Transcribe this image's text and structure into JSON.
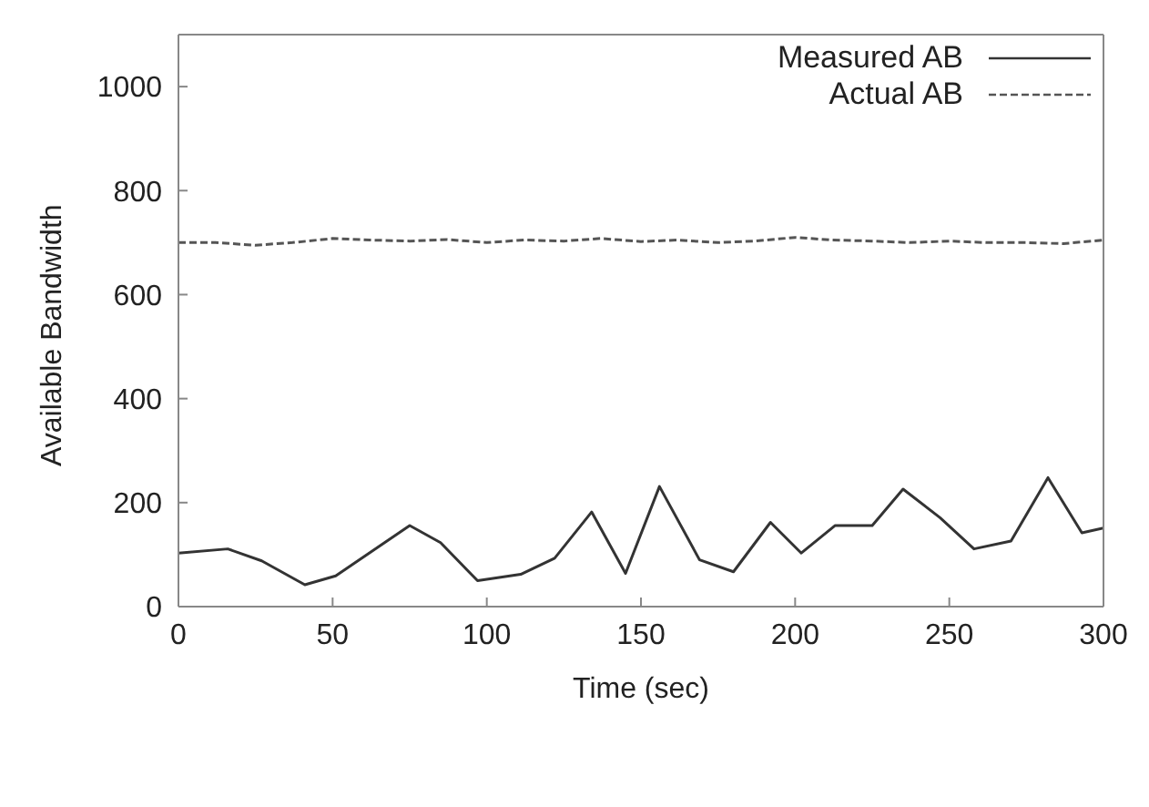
{
  "chart_data": {
    "type": "line",
    "xlabel": "Time (sec)",
    "ylabel": "Available Bandwidth",
    "xlim": [
      0,
      300
    ],
    "xticks": [
      0,
      50,
      100,
      150,
      200,
      250,
      300
    ],
    "ylim": [
      0,
      1100
    ],
    "yticks": [
      0,
      200,
      400,
      600,
      800,
      1000
    ],
    "legend": "top right",
    "marker": "none",
    "series": [
      {
        "name": "Measured AB",
        "color": "#333333",
        "line_style": "solid",
        "x": [
          0,
          16,
          27,
          41,
          51,
          75,
          85,
          97,
          111,
          122,
          134,
          145,
          156,
          169,
          180,
          192,
          202,
          213,
          225,
          235,
          247,
          258,
          270,
          282,
          293,
          300
        ],
        "values": [
          103,
          111,
          88,
          42,
          59,
          156,
          123,
          50,
          62,
          93,
          182,
          64,
          231,
          90,
          67,
          162,
          103,
          156,
          156,
          226,
          171,
          111,
          126,
          248,
          142,
          151
        ]
      },
      {
        "name": "Actual AB",
        "color": "#555555",
        "line_style": "dashed",
        "x": [
          0,
          12,
          25,
          37,
          50,
          62,
          75,
          87,
          100,
          112,
          125,
          137,
          150,
          162,
          175,
          187,
          200,
          212,
          225,
          237,
          250,
          262,
          275,
          287,
          300
        ],
        "values": [
          700,
          700,
          695,
          700,
          708,
          705,
          703,
          706,
          700,
          705,
          703,
          708,
          702,
          705,
          700,
          703,
          710,
          705,
          703,
          700,
          703,
          700,
          700,
          698,
          705
        ]
      }
    ]
  }
}
